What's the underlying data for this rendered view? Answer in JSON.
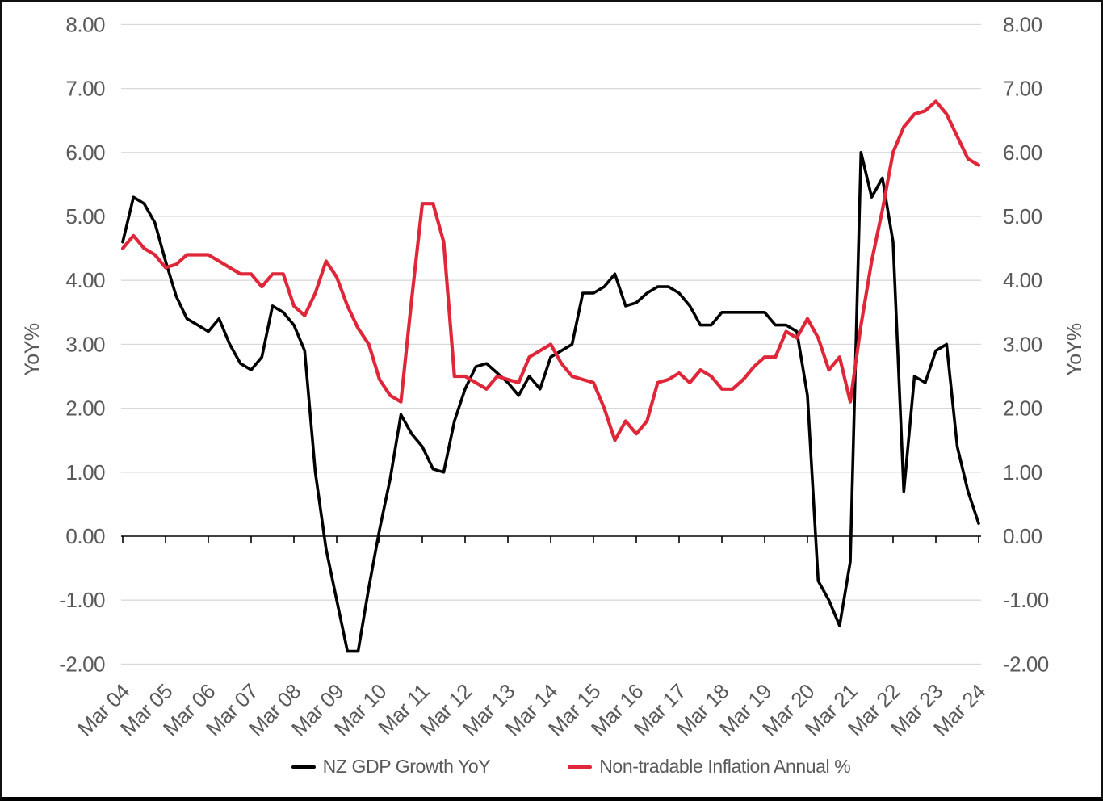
{
  "chart_data": {
    "type": "line",
    "title": "",
    "x_frequency": "quarterly",
    "x_start": "Mar 04",
    "x_end": "Mar 24",
    "x_tick_labels": [
      "Mar 04",
      "Mar 05",
      "Mar 06",
      "Mar 07",
      "Mar 08",
      "Mar 09",
      "Mar 10",
      "Mar 11",
      "Mar 12",
      "Mar 13",
      "Mar 14",
      "Mar 15",
      "Mar 16",
      "Mar 17",
      "Mar 18",
      "Mar 19",
      "Mar 20",
      "Mar 21",
      "Mar 22",
      "Mar 23",
      "Mar 24"
    ],
    "ylabel_left": "YoY%",
    "ylabel_right": "YoY%",
    "ylim": [
      -2,
      8
    ],
    "y_tick_labels": [
      "8.00",
      "7.00",
      "6.00",
      "5.00",
      "4.00",
      "3.00",
      "2.00",
      "1.00",
      "0.00",
      "-1.00",
      "-2.00"
    ],
    "grid": true,
    "legend_position": "bottom",
    "series": [
      {
        "name": "NZ GDP Growth YoY",
        "color": "#000000",
        "values": [
          4.6,
          5.3,
          5.2,
          4.9,
          4.3,
          3.75,
          3.4,
          3.3,
          3.2,
          3.4,
          3.0,
          2.7,
          2.6,
          2.8,
          3.6,
          3.5,
          3.3,
          2.9,
          1.0,
          -0.2,
          -1.0,
          -1.8,
          -1.8,
          -0.8,
          0.1,
          0.9,
          1.9,
          1.6,
          1.4,
          1.05,
          1.0,
          1.8,
          2.3,
          2.65,
          2.7,
          2.55,
          2.4,
          2.2,
          2.5,
          2.3,
          2.8,
          2.9,
          3.0,
          3.8,
          3.8,
          3.9,
          4.1,
          3.6,
          3.65,
          3.8,
          3.9,
          3.9,
          3.8,
          3.6,
          3.3,
          3.3,
          3.5,
          3.5,
          3.5,
          3.5,
          3.5,
          3.3,
          3.3,
          3.2,
          2.2,
          -0.7,
          -1.0,
          -1.4,
          -0.4,
          6.0,
          5.3,
          5.6,
          4.6,
          0.7,
          2.5,
          2.4,
          2.9,
          3.0,
          1.4,
          0.7,
          0.2
        ]
      },
      {
        "name": "Non-tradable Inflation Annual %",
        "color": "#e0273a",
        "values": [
          4.5,
          4.7,
          4.5,
          4.4,
          4.2,
          4.25,
          4.4,
          4.4,
          4.4,
          4.3,
          4.2,
          4.1,
          4.1,
          3.9,
          4.1,
          4.1,
          3.6,
          3.45,
          3.8,
          4.3,
          4.05,
          3.6,
          3.25,
          3.0,
          2.45,
          2.2,
          2.1,
          3.7,
          5.2,
          5.2,
          4.6,
          2.5,
          2.5,
          2.4,
          2.3,
          2.5,
          2.45,
          2.4,
          2.8,
          2.9,
          3.0,
          2.7,
          2.5,
          2.45,
          2.4,
          2.0,
          1.5,
          1.8,
          1.6,
          1.8,
          2.4,
          2.45,
          2.55,
          2.4,
          2.6,
          2.5,
          2.3,
          2.3,
          2.45,
          2.65,
          2.8,
          2.8,
          3.2,
          3.1,
          3.4,
          3.1,
          2.6,
          2.8,
          2.1,
          3.3,
          4.3,
          5.1,
          6.0,
          6.4,
          6.6,
          6.65,
          6.8,
          6.6,
          6.25,
          5.9,
          5.8
        ]
      }
    ]
  },
  "axes": {
    "left_title": "YoY%",
    "right_title": "YoY%"
  },
  "legend": {
    "gdp_label": "NZ GDP Growth YoY",
    "inflation_label": "Non-tradable Inflation Annual %"
  },
  "style": {
    "background": "#ffffff",
    "grid_color": "#d9d9d9",
    "axis_color": "#000000",
    "label_color": "#595959",
    "gdp_color": "#000000",
    "inflation_color": "#e0273a"
  }
}
